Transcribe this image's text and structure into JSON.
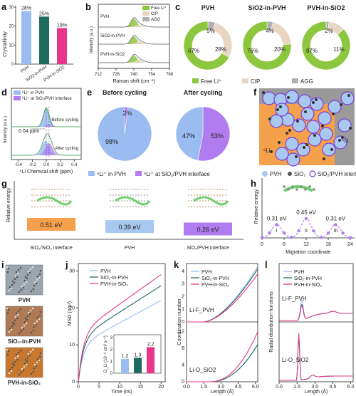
{
  "panels": {
    "a": "a",
    "b": "b",
    "c": "c",
    "d": "d",
    "e": "e",
    "f": "f",
    "g": "g",
    "h": "h",
    "i": "i",
    "j": "j",
    "k": "k",
    "l": "l"
  },
  "colors": {
    "pvh": "#9bbcf0",
    "sio2_in_pvh": "#1f6b5e",
    "pvh_in_sio2": "#e8358c",
    "free": "#8dc63f",
    "cip": "#e8d6c3",
    "agg": "#b0b0b0",
    "purple": "#b07cf0",
    "orange": "#f5a04a",
    "blue_ion": "#a8c8f0"
  },
  "chart_data": [
    {
      "id": "a",
      "type": "bar",
      "categories": [
        "PVH",
        "SiO2-in-PVH",
        "PVH-in-SiO2"
      ],
      "values": [
        28,
        25,
        19
      ],
      "data_labels": [
        "28%",
        "25%",
        "19%"
      ],
      "ylabel": "Crystallinity",
      "ylim": [
        0,
        30
      ],
      "yticks": [
        "0",
        "10",
        "20",
        "30"
      ]
    },
    {
      "id": "b",
      "type": "line",
      "xlabel": "Raman shift (cm⁻¹)",
      "ylabel": "Intensity (a.u.)",
      "xticks": [
        "712",
        "726",
        "740",
        "754",
        "768"
      ],
      "xlim": [
        712,
        768
      ],
      "legend": [
        "Free Li⁺",
        "CIP",
        "AGG"
      ],
      "series": [
        {
          "name": "PVH"
        },
        {
          "name": "SiO2-in-PVH"
        },
        {
          "name": "PVH-in-SiO2"
        }
      ]
    },
    {
      "id": "c",
      "type": "pie",
      "groups": [
        {
          "title": "PVH",
          "values": [
            67,
            28,
            5
          ],
          "labels": [
            "67%",
            "28%",
            "5%"
          ]
        },
        {
          "title": "SiO2-in-PVH",
          "values": [
            76,
            20,
            4
          ],
          "labels": [
            "76%",
            "20%",
            "4%"
          ]
        },
        {
          "title": "PVH-in-SiO2",
          "values": [
            87,
            11,
            2
          ],
          "labels": [
            "87%",
            "11%",
            "2%"
          ]
        }
      ],
      "legend": [
        "Free Li⁺",
        "CIP",
        "AGG"
      ]
    },
    {
      "id": "d",
      "type": "line",
      "xlabel": "⁶Li Chemical shift (ppm)",
      "ylabel": "Intensity (a.u.)",
      "xticks": [
        "-0.4",
        "-0.2",
        "0.0",
        "0.2",
        "0.4"
      ],
      "legend": [
        "⁶Li⁺ in PVH",
        "⁶Li⁺ at SiO₂/PVH interface"
      ],
      "annotations": [
        "Before cycling",
        "After cycling",
        "0.04 ppm"
      ]
    },
    {
      "id": "e",
      "type": "pie",
      "groups": [
        {
          "title": "Before cycling",
          "values": [
            98,
            2
          ],
          "labels": [
            "98%",
            "2%"
          ]
        },
        {
          "title": "After cycling",
          "values": [
            47,
            53
          ],
          "labels": [
            "47%",
            "53%"
          ]
        }
      ],
      "legend": [
        "⁶Li⁺ in PVH",
        "⁶Li⁺ at SiO₂/PVH interface"
      ]
    },
    {
      "id": "g",
      "type": "bar",
      "categories": [
        "SiO₂/SiO₂ interface",
        "PVH",
        "SiO₂/PVH interface"
      ],
      "values": [
        0.51,
        0.39,
        0.26
      ],
      "data_labels": [
        "0.51 eV",
        "0.39 eV",
        "0.26 eV"
      ],
      "ylabel": "Relative energy"
    },
    {
      "id": "h",
      "type": "line",
      "xlabel": "Migration coordinate",
      "ylabel": "Relative energy",
      "xticks": [
        "0",
        "6",
        "12",
        "18",
        "24"
      ],
      "annotations": [
        "0.31 eV",
        "0.45 eV",
        "0.31 eV",
        "I",
        "II",
        "III"
      ]
    },
    {
      "id": "j",
      "type": "line",
      "xlabel": "Time (ns)",
      "ylabel": "MSD (nm²)",
      "xticks": [
        "0",
        "5",
        "10",
        "15",
        "20"
      ],
      "yticks": [
        "0",
        "10",
        "20",
        "30"
      ],
      "series": [
        {
          "name": "PVH",
          "end": 22
        },
        {
          "name": "SiO₂-in-PVH",
          "end": 26
        },
        {
          "name": "PVH-in-SiO₂",
          "end": 29
        }
      ],
      "inset": {
        "ylabel": "D_Li (10⁻⁸ cm² s⁻¹)",
        "values": [
          1.2,
          1.3,
          2.2
        ],
        "labels": [
          "1.2",
          "1.3",
          "2.2"
        ],
        "yticks": [
          "0",
          "1",
          "2",
          "3"
        ]
      }
    },
    {
      "id": "k",
      "type": "line",
      "xlabel": "Length (Å)",
      "ylabel": "Coordination number",
      "xticks": [
        "0.0",
        "1.5",
        "3.0",
        "4.5",
        "6.0"
      ],
      "yticks_top": [
        "0",
        "1",
        "2",
        "3",
        "4"
      ],
      "yticks_bottom": [
        "0",
        "4",
        "8",
        "12"
      ],
      "annotations": [
        "Li-F_PVH",
        "Li-O_SiO2"
      ],
      "series": [
        {
          "name": "PVH"
        },
        {
          "name": "SiO₂-in-PVH"
        },
        {
          "name": "PVH-in-SiO₂"
        }
      ]
    },
    {
      "id": "l",
      "type": "line",
      "xlabel": "Length (Å)",
      "ylabel": "Radial distribution functions",
      "xticks": [
        "0.0",
        "1.5",
        "3.0",
        "4.5",
        "6.0"
      ],
      "annotations": [
        "Li-F_PVH",
        "Li-O_SiO2"
      ],
      "series": [
        {
          "name": "PVH"
        },
        {
          "name": "SiO₂-in-PVH"
        },
        {
          "name": "PVH-in-SiO₂"
        }
      ]
    }
  ],
  "f_legend": [
    "PVH",
    "SiO₂",
    "SiO₂/PVH interf"
  ],
  "f_labels": [
    "⁶Li",
    "⁶Li"
  ],
  "i_labels": [
    "PVH",
    "SiO₂-in-PVH",
    "PVH-in-SiO₂"
  ]
}
